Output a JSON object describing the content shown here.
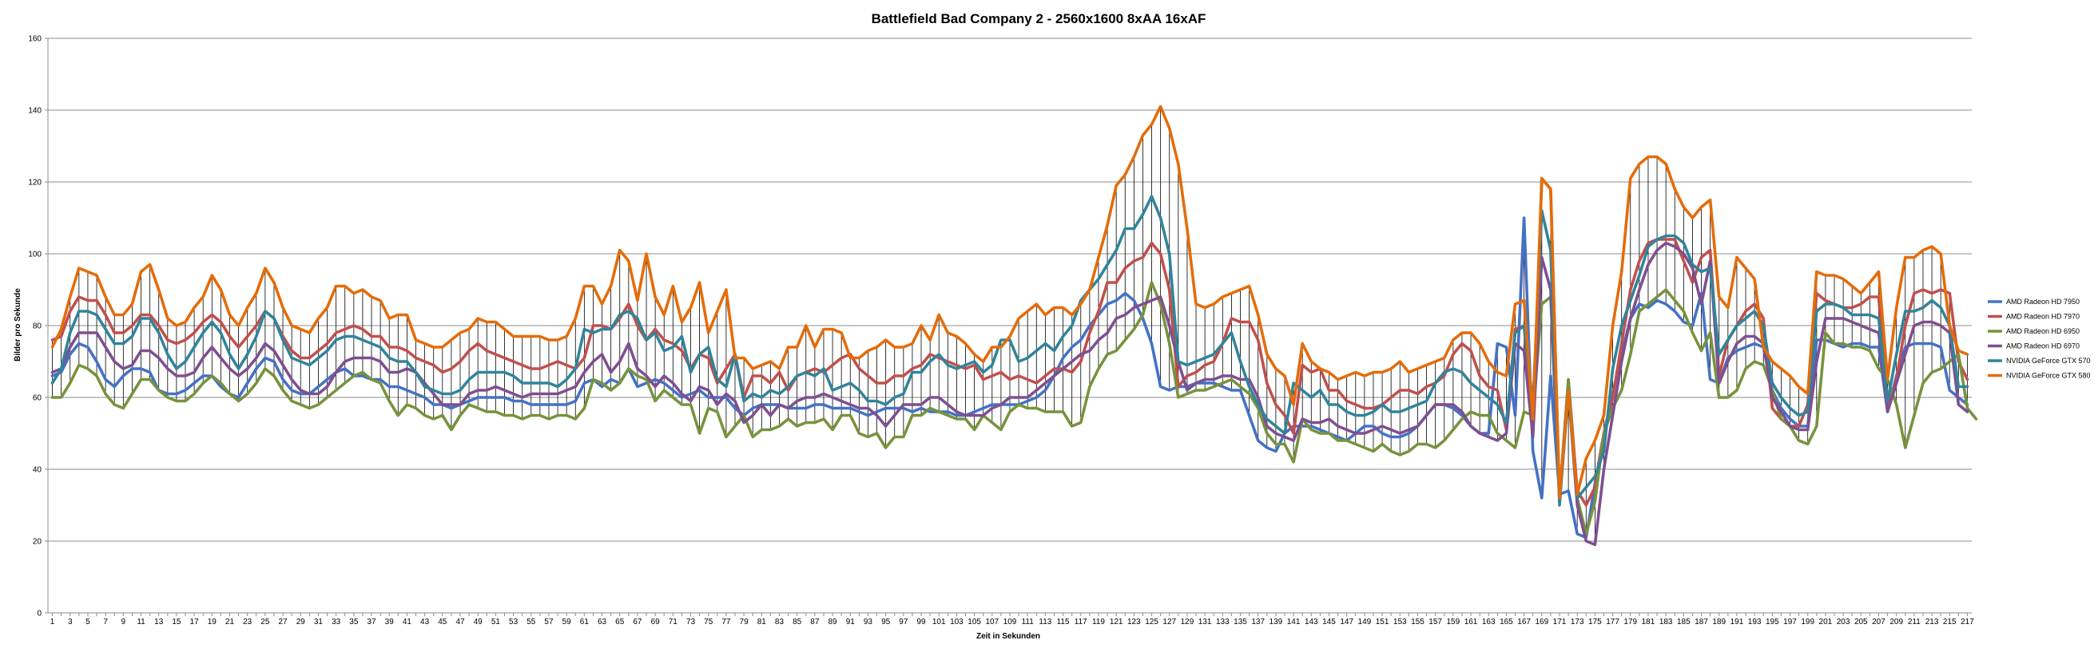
{
  "chart_data": {
    "type": "line",
    "title": "Battlefield Bad Company 2 - 2560x1600 8xAA 16xAF",
    "xlabel": "Zeit in Sekunden",
    "ylabel": "Bilder pro Sekunde",
    "xlim": [
      1,
      210
    ],
    "ylim": [
      0,
      160
    ],
    "yticks": [
      0,
      20,
      40,
      60,
      80,
      100,
      120,
      140,
      160
    ],
    "xtick_step": 2,
    "grid": "horizontal",
    "high_low_lines": true,
    "legend_position": "right",
    "series": [
      {
        "name": "AMD Radeon HD 7950",
        "color": "#4472C4",
        "values": [
          66,
          67,
          72,
          75,
          74,
          70,
          65,
          63,
          66,
          68,
          68,
          67,
          62,
          61,
          61,
          62,
          64,
          66,
          66,
          63,
          61,
          60,
          64,
          68,
          71,
          70,
          65,
          62,
          61,
          61,
          63,
          65,
          67,
          68,
          66,
          66,
          65,
          65,
          63,
          63,
          62,
          61,
          60,
          58,
          58,
          57,
          58,
          59,
          60,
          60,
          60,
          60,
          59,
          59,
          58,
          58,
          58,
          58,
          58,
          59,
          64,
          65,
          63,
          65,
          64,
          68,
          63,
          64,
          65,
          64,
          62,
          60,
          61,
          62,
          60,
          60,
          60,
          57,
          55,
          57,
          58,
          58,
          58,
          57,
          57,
          57,
          58,
          58,
          57,
          57,
          57,
          56,
          55,
          56,
          57,
          57,
          57,
          56,
          57,
          56,
          56,
          56,
          55,
          55,
          56,
          57,
          58,
          58,
          58,
          58,
          59,
          60,
          62,
          66,
          71,
          74,
          76,
          80,
          83,
          86,
          87,
          89,
          87,
          82,
          75,
          63,
          62,
          63,
          63,
          64,
          64,
          64,
          63,
          62,
          62,
          55,
          48,
          46,
          45,
          50,
          52,
          52,
          52,
          51,
          50,
          49,
          48,
          50,
          52,
          52,
          50,
          49,
          49,
          50,
          52,
          55,
          58,
          58,
          57,
          55,
          52,
          50,
          50,
          75,
          74,
          55,
          110,
          45,
          32,
          66,
          33,
          34,
          22,
          21,
          36,
          50,
          61,
          72,
          82,
          86,
          85,
          87,
          86,
          84,
          81,
          80,
          89,
          65,
          64,
          71,
          73,
          74,
          75,
          74,
          62,
          57,
          54,
          52,
          52,
          76,
          76,
          75,
          74,
          75,
          75,
          74,
          74,
          56,
          66,
          74,
          75,
          75,
          75,
          74,
          62,
          60,
          58
        ]
      },
      {
        "name": "AMD Radeon HD 7970",
        "color": "#C0504D",
        "values": [
          76,
          77,
          84,
          88,
          87,
          87,
          83,
          78,
          78,
          80,
          83,
          83,
          80,
          76,
          75,
          76,
          78,
          81,
          83,
          81,
          77,
          74,
          77,
          80,
          84,
          82,
          77,
          73,
          71,
          71,
          73,
          75,
          78,
          79,
          80,
          79,
          77,
          77,
          74,
          74,
          73,
          71,
          70,
          69,
          67,
          68,
          70,
          73,
          75,
          73,
          72,
          71,
          70,
          69,
          68,
          68,
          69,
          70,
          69,
          68,
          71,
          80,
          80,
          79,
          82,
          86,
          80,
          76,
          79,
          76,
          75,
          73,
          68,
          72,
          71,
          64,
          68,
          72,
          60,
          66,
          66,
          64,
          67,
          62,
          66,
          67,
          68,
          67,
          69,
          71,
          72,
          68,
          66,
          64,
          64,
          66,
          66,
          68,
          69,
          72,
          71,
          70,
          69,
          68,
          69,
          65,
          66,
          67,
          65,
          66,
          65,
          64,
          66,
          68,
          68,
          67,
          70,
          78,
          84,
          92,
          92,
          96,
          98,
          99,
          103,
          100,
          90,
          63,
          66,
          67,
          69,
          70,
          75,
          82,
          81,
          81,
          76,
          64,
          58,
          55,
          50,
          69,
          67,
          68,
          62,
          62,
          59,
          58,
          57,
          57,
          58,
          60,
          62,
          62,
          61,
          63,
          64,
          66,
          72,
          75,
          73,
          66,
          63,
          62,
          51,
          79,
          80,
          50,
          121,
          118,
          32,
          65,
          34,
          30,
          35,
          50,
          60,
          75,
          90,
          98,
          103,
          104,
          104,
          104,
          98,
          92,
          99,
          101,
          66,
          76,
          80,
          84,
          86,
          82,
          57,
          54,
          52,
          52,
          58,
          89,
          87,
          86,
          85,
          85,
          86,
          88,
          88,
          57,
          65,
          80,
          89,
          90,
          89,
          90,
          89,
          70,
          65
        ]
      },
      {
        "name": "AMD Radeon HD 6950",
        "color": "#77933C",
        "values": [
          60,
          60,
          64,
          69,
          68,
          66,
          61,
          58,
          57,
          61,
          65,
          65,
          62,
          60,
          59,
          59,
          61,
          64,
          66,
          64,
          61,
          59,
          61,
          64,
          68,
          66,
          62,
          59,
          58,
          57,
          58,
          60,
          62,
          64,
          66,
          67,
          65,
          64,
          59,
          55,
          58,
          57,
          55,
          54,
          55,
          51,
          55,
          58,
          57,
          56,
          56,
          55,
          55,
          54,
          55,
          55,
          54,
          55,
          55,
          54,
          57,
          65,
          64,
          62,
          64,
          68,
          66,
          65,
          59,
          62,
          60,
          58,
          58,
          50,
          57,
          56,
          49,
          52,
          55,
          49,
          51,
          51,
          52,
          54,
          52,
          53,
          53,
          54,
          51,
          55,
          55,
          50,
          49,
          50,
          46,
          49,
          49,
          55,
          55,
          57,
          56,
          55,
          54,
          54,
          51,
          55,
          53,
          51,
          56,
          58,
          57,
          57,
          56,
          56,
          56,
          52,
          53,
          63,
          68,
          72,
          73,
          76,
          79,
          83,
          92,
          86,
          75,
          60,
          61,
          62,
          62,
          63,
          64,
          65,
          63,
          61,
          57,
          50,
          47,
          47,
          42,
          54,
          51,
          50,
          50,
          48,
          48,
          47,
          46,
          45,
          47,
          45,
          44,
          45,
          47,
          47,
          46,
          48,
          51,
          54,
          56,
          55,
          55,
          50,
          48,
          46,
          56,
          55,
          86,
          88,
          32,
          65,
          32,
          22,
          31,
          50,
          57,
          62,
          72,
          84,
          86,
          88,
          90,
          87,
          84,
          78,
          73,
          78,
          60,
          60,
          62,
          68,
          70,
          69,
          62,
          54,
          52,
          48,
          47,
          52,
          78,
          75,
          75,
          74,
          74,
          73,
          68,
          65,
          58,
          46,
          55,
          64,
          67,
          68,
          70,
          72,
          57,
          54
        ]
      },
      {
        "name": "AMD Radeon HD 6970",
        "color": "#7F4F8F",
        "values": [
          67,
          68,
          74,
          78,
          78,
          78,
          74,
          70,
          68,
          69,
          73,
          73,
          71,
          68,
          66,
          66,
          67,
          71,
          74,
          71,
          68,
          66,
          68,
          71,
          75,
          73,
          69,
          65,
          62,
          61,
          61,
          63,
          67,
          70,
          71,
          71,
          71,
          70,
          67,
          67,
          68,
          67,
          64,
          61,
          58,
          58,
          58,
          61,
          62,
          62,
          63,
          62,
          61,
          60,
          61,
          61,
          61,
          61,
          62,
          63,
          67,
          70,
          72,
          67,
          70,
          75,
          68,
          66,
          63,
          66,
          64,
          61,
          59,
          63,
          62,
          58,
          61,
          59,
          53,
          55,
          58,
          55,
          58,
          57,
          59,
          60,
          60,
          61,
          60,
          59,
          58,
          57,
          57,
          55,
          52,
          55,
          58,
          58,
          58,
          60,
          60,
          58,
          56,
          55,
          55,
          55,
          57,
          58,
          60,
          60,
          60,
          62,
          64,
          66,
          68,
          70,
          72,
          73,
          76,
          78,
          82,
          83,
          85,
          86,
          87,
          88,
          80,
          70,
          62,
          64,
          65,
          65,
          66,
          66,
          65,
          65,
          60,
          52,
          50,
          49,
          48,
          54,
          53,
          53,
          54,
          52,
          51,
          50,
          50,
          51,
          52,
          51,
          50,
          51,
          52,
          55,
          58,
          58,
          58,
          56,
          52,
          50,
          49,
          48,
          50,
          75,
          73,
          49,
          99,
          90,
          31,
          62,
          30,
          20,
          19,
          40,
          55,
          70,
          82,
          90,
          97,
          101,
          103,
          102,
          100,
          96,
          86,
          98,
          64,
          70,
          75,
          77,
          77,
          75,
          60,
          56,
          52,
          51,
          51,
          70,
          82,
          82,
          82,
          81,
          80,
          79,
          78,
          56,
          64,
          72,
          80,
          81,
          81,
          80,
          78,
          58,
          56
        ]
      },
      {
        "name": "NVIDIA GeForce GTX 570",
        "color": "#31849B",
        "values": [
          64,
          68,
          78,
          84,
          84,
          83,
          79,
          75,
          75,
          77,
          82,
          82,
          78,
          72,
          68,
          70,
          74,
          78,
          81,
          78,
          72,
          68,
          72,
          77,
          84,
          82,
          76,
          71,
          70,
          69,
          71,
          73,
          76,
          77,
          77,
          76,
          75,
          74,
          71,
          70,
          70,
          67,
          63,
          62,
          61,
          61,
          62,
          65,
          67,
          67,
          67,
          67,
          66,
          64,
          64,
          64,
          64,
          63,
          65,
          68,
          79,
          78,
          79,
          79,
          83,
          84,
          82,
          76,
          78,
          73,
          74,
          77,
          67,
          72,
          74,
          65,
          63,
          72,
          59,
          61,
          60,
          62,
          61,
          63,
          66,
          67,
          66,
          68,
          62,
          63,
          64,
          62,
          59,
          59,
          58,
          60,
          61,
          67,
          67,
          70,
          72,
          69,
          68,
          69,
          70,
          67,
          69,
          76,
          76,
          70,
          71,
          73,
          75,
          73,
          77,
          80,
          87,
          90,
          93,
          97,
          101,
          107,
          107,
          111,
          116,
          110,
          100,
          70,
          69,
          70,
          71,
          72,
          75,
          78,
          70,
          63,
          58,
          54,
          52,
          50,
          64,
          62,
          60,
          62,
          58,
          58,
          56,
          55,
          55,
          56,
          58,
          56,
          56,
          57,
          58,
          59,
          64,
          67,
          68,
          67,
          64,
          62,
          60,
          58,
          53,
          78,
          80,
          58,
          112,
          101,
          30,
          62,
          32,
          35,
          38,
          45,
          68,
          80,
          87,
          94,
          102,
          104,
          105,
          105,
          103,
          97,
          95,
          96,
          72,
          76,
          80,
          82,
          84,
          80,
          64,
          60,
          57,
          55,
          56,
          84,
          86,
          86,
          85,
          83,
          83,
          83,
          82,
          59,
          72,
          84,
          84,
          85,
          87,
          85,
          80,
          63,
          63
        ]
      },
      {
        "name": "NVIDIA GeForce GTX 580",
        "color": "#E46C0A",
        "values": [
          74,
          79,
          88,
          96,
          95,
          94,
          88,
          83,
          83,
          86,
          95,
          97,
          90,
          82,
          80,
          81,
          85,
          88,
          94,
          90,
          83,
          80,
          85,
          89,
          96,
          92,
          85,
          80,
          79,
          78,
          82,
          85,
          91,
          91,
          89,
          90,
          88,
          87,
          82,
          83,
          83,
          76,
          75,
          74,
          74,
          76,
          78,
          79,
          82,
          81,
          81,
          79,
          77,
          77,
          77,
          77,
          76,
          76,
          77,
          82,
          91,
          91,
          86,
          91,
          101,
          98,
          87,
          100,
          88,
          83,
          91,
          81,
          85,
          92,
          78,
          84,
          90,
          71,
          71,
          68,
          69,
          70,
          68,
          74,
          74,
          80,
          74,
          79,
          79,
          78,
          71,
          71,
          73,
          74,
          76,
          74,
          74,
          75,
          80,
          76,
          83,
          78,
          77,
          75,
          72,
          70,
          74,
          74,
          77,
          82,
          84,
          86,
          83,
          85,
          85,
          83,
          86,
          90,
          99,
          108,
          119,
          122,
          127,
          133,
          136,
          141,
          135,
          125,
          107,
          86,
          85,
          86,
          88,
          89,
          90,
          91,
          83,
          72,
          68,
          66,
          58,
          75,
          70,
          68,
          67,
          65,
          66,
          67,
          66,
          67,
          67,
          68,
          70,
          67,
          68,
          69,
          70,
          71,
          76,
          78,
          78,
          75,
          70,
          67,
          66,
          86,
          87,
          54,
          121,
          118,
          32,
          62,
          33,
          43,
          48,
          55,
          80,
          95,
          121,
          125,
          127,
          127,
          125,
          118,
          113,
          110,
          113,
          115,
          88,
          85,
          99,
          96,
          93,
          74,
          70,
          68,
          66,
          63,
          61,
          95,
          94,
          94,
          93,
          91,
          89,
          92,
          95,
          65,
          85,
          99,
          99,
          101,
          102,
          100,
          80,
          73,
          72
        ]
      }
    ]
  }
}
